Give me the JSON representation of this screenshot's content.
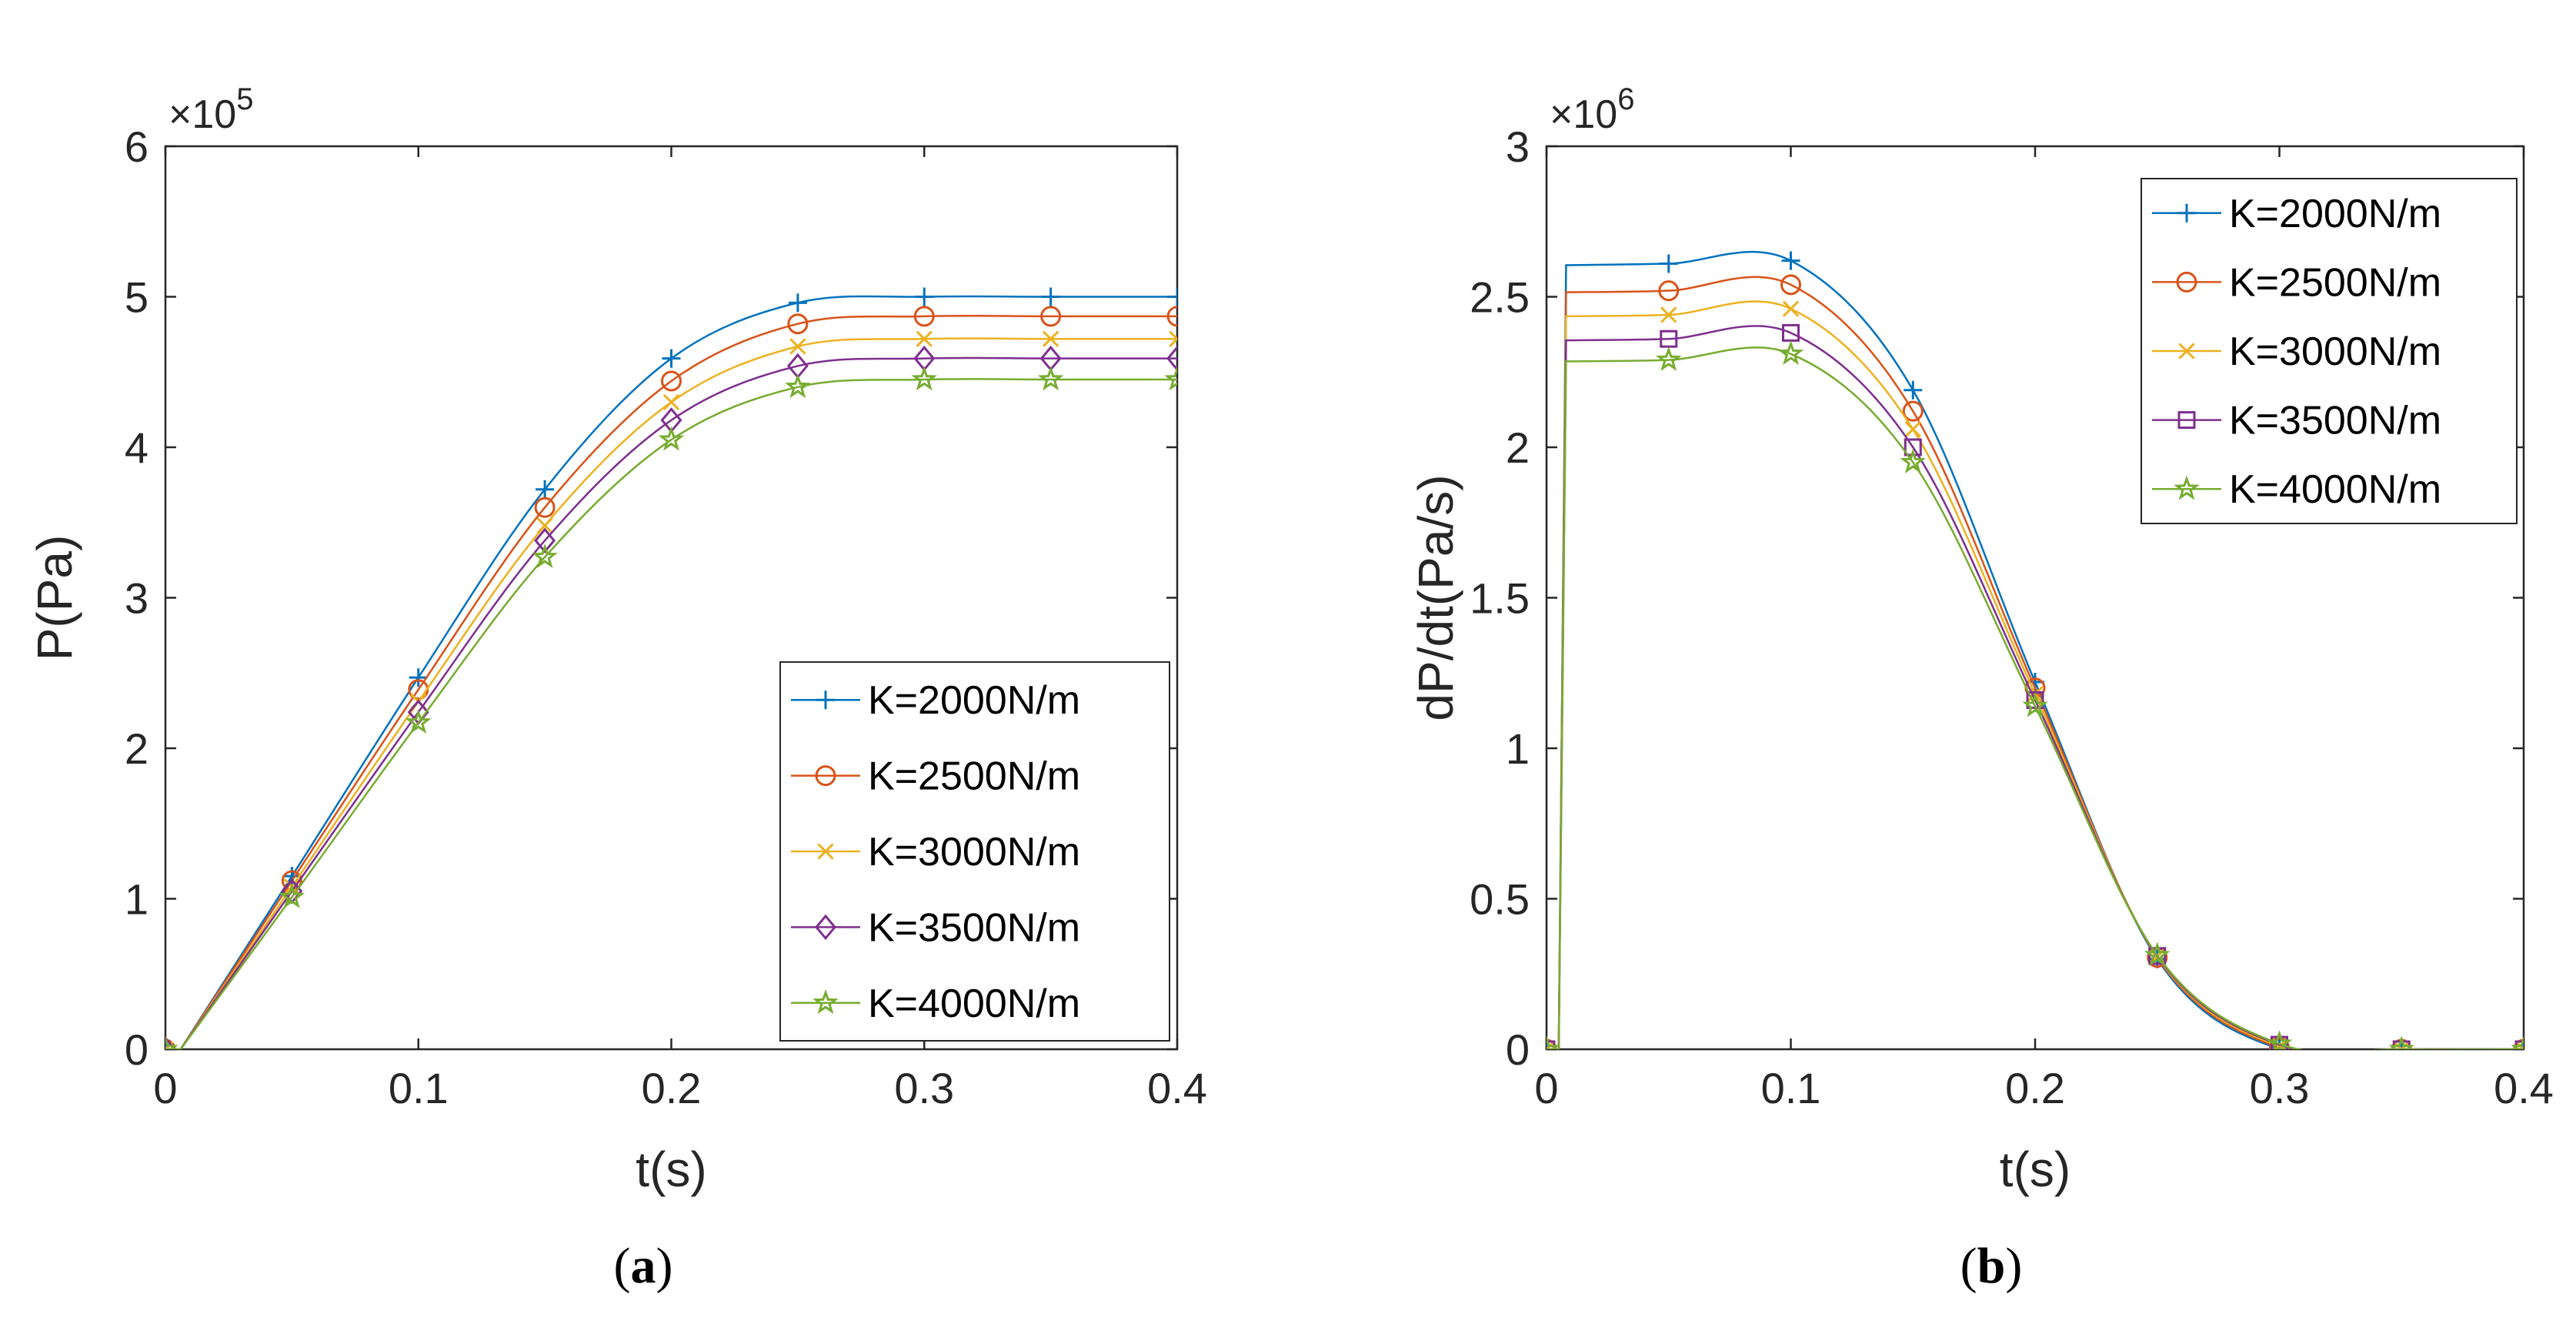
{
  "colors": [
    "#0072BD",
    "#D95319",
    "#EDB120",
    "#7E2F8E",
    "#77AC30"
  ],
  "chart_data": [
    {
      "panel": "a",
      "caption_letter": "a",
      "type": "line",
      "xlabel": "t(s)",
      "ylabel": "P(Pa)",
      "xlim": [
        0,
        0.4
      ],
      "ylim": [
        0,
        600000
      ],
      "xticks": [
        "0",
        "0.1",
        "0.2",
        "0.3",
        "0.4"
      ],
      "xtick_values": [
        0,
        0.1,
        0.2,
        0.3,
        0.4
      ],
      "yticks": [
        "0",
        "1",
        "2",
        "3",
        "4",
        "5",
        "6"
      ],
      "ytick_values": [
        0,
        100000,
        200000,
        300000,
        400000,
        500000,
        600000
      ],
      "y_exponent_text": "×10",
      "y_exponent_power": "5",
      "legend_position": "lower-right",
      "grid": false,
      "series": [
        {
          "name": "K=2000N/m",
          "marker": "plus",
          "x": [
            0,
            0.05,
            0.1,
            0.15,
            0.2,
            0.25,
            0.3,
            0.35,
            0.4
          ],
          "y": [
            0,
            115000,
            247000,
            372000,
            459000,
            496000,
            500000,
            500000,
            500000
          ]
        },
        {
          "name": "K=2500N/m",
          "marker": "circle",
          "x": [
            0,
            0.05,
            0.1,
            0.15,
            0.2,
            0.25,
            0.3,
            0.35,
            0.4
          ],
          "y": [
            0,
            112000,
            239000,
            360000,
            444000,
            482000,
            487000,
            487000,
            487000
          ]
        },
        {
          "name": "K=3000N/m",
          "marker": "cross",
          "x": [
            0,
            0.05,
            0.1,
            0.15,
            0.2,
            0.25,
            0.3,
            0.35,
            0.4
          ],
          "y": [
            0,
            108000,
            231000,
            348000,
            430000,
            467000,
            472000,
            472000,
            472000
          ]
        },
        {
          "name": "K=3500N/m",
          "marker": "diamond",
          "x": [
            0,
            0.05,
            0.1,
            0.15,
            0.2,
            0.25,
            0.3,
            0.35,
            0.4
          ],
          "y": [
            0,
            105000,
            224000,
            338000,
            418000,
            454000,
            459000,
            459000,
            459000
          ]
        },
        {
          "name": "K=4000N/m",
          "marker": "star",
          "x": [
            0,
            0.05,
            0.1,
            0.15,
            0.2,
            0.25,
            0.3,
            0.35,
            0.4
          ],
          "y": [
            0,
            101000,
            217000,
            327000,
            405000,
            440000,
            445000,
            445000,
            445000
          ]
        }
      ]
    },
    {
      "panel": "b",
      "caption_letter": "b",
      "type": "line",
      "xlabel": "t(s)",
      "ylabel": "dP/dt(Pa/s)",
      "xlim": [
        0,
        0.4
      ],
      "ylim": [
        0,
        3000000
      ],
      "xticks": [
        "0",
        "0.1",
        "0.2",
        "0.3",
        "0.4"
      ],
      "xtick_values": [
        0,
        0.1,
        0.2,
        0.3,
        0.4
      ],
      "yticks": [
        "0",
        "0.5",
        "1",
        "1.5",
        "2",
        "2.5",
        "3"
      ],
      "ytick_values": [
        0,
        500000,
        1000000,
        1500000,
        2000000,
        2500000,
        3000000
      ],
      "y_exponent_text": "×10",
      "y_exponent_power": "6",
      "legend_position": "top-right",
      "grid": false,
      "series": [
        {
          "name": "K=2000N/m",
          "marker": "plus",
          "x": [
            0,
            0.05,
            0.1,
            0.15,
            0.2,
            0.25,
            0.3,
            0.35,
            0.4
          ],
          "y": [
            0,
            2610000,
            2620000,
            2190000,
            1220000,
            300000,
            0,
            0,
            0
          ]
        },
        {
          "name": "K=2500N/m",
          "marker": "circle",
          "x": [
            0,
            0.05,
            0.1,
            0.15,
            0.2,
            0.25,
            0.3,
            0.35,
            0.4
          ],
          "y": [
            0,
            2520000,
            2540000,
            2120000,
            1200000,
            305000,
            5000,
            0,
            0
          ]
        },
        {
          "name": "K=3000N/m",
          "marker": "cross",
          "x": [
            0,
            0.05,
            0.1,
            0.15,
            0.2,
            0.25,
            0.3,
            0.35,
            0.4
          ],
          "y": [
            0,
            2440000,
            2460000,
            2060000,
            1180000,
            308000,
            10000,
            0,
            0
          ]
        },
        {
          "name": "K=3500N/m",
          "marker": "square",
          "x": [
            0,
            0.05,
            0.1,
            0.15,
            0.2,
            0.25,
            0.3,
            0.35,
            0.4
          ],
          "y": [
            0,
            2360000,
            2380000,
            2000000,
            1160000,
            310000,
            15000,
            0,
            0
          ]
        },
        {
          "name": "K=4000N/m",
          "marker": "star",
          "x": [
            0,
            0.05,
            0.1,
            0.15,
            0.2,
            0.25,
            0.3,
            0.35,
            0.4
          ],
          "y": [
            0,
            2290000,
            2310000,
            1950000,
            1140000,
            312000,
            18000,
            0,
            0
          ]
        }
      ]
    }
  ]
}
